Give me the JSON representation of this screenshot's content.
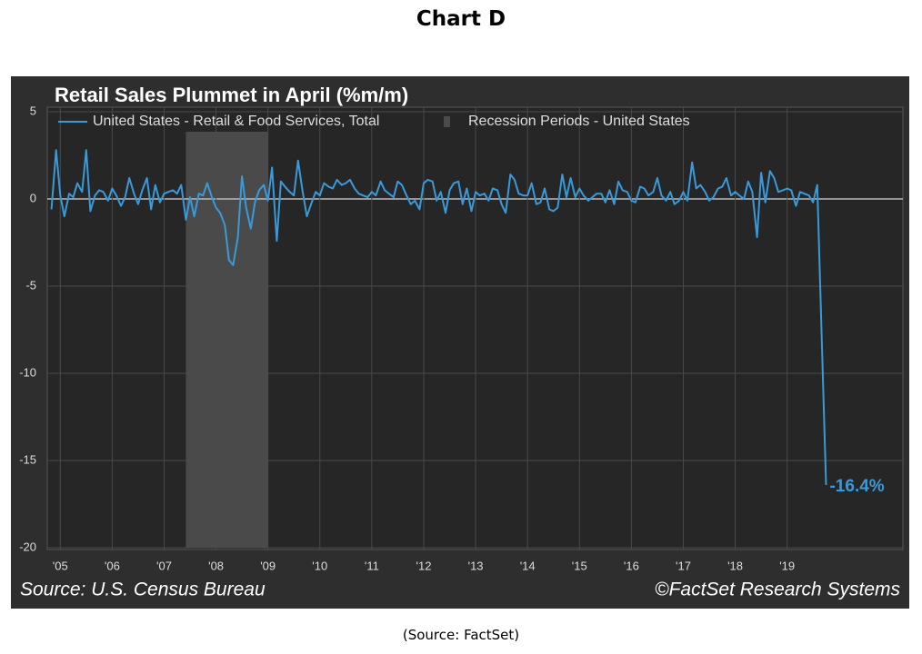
{
  "heading": "Chart D",
  "footer": "(Source:  FactSet)",
  "chart_data": {
    "type": "line",
    "title": "Retail Sales Plummet in April (%m/m)",
    "source": "Source: U.S. Census Bureau",
    "copyright": "©FactSet Research Systems",
    "annotation": "-16.4%",
    "recession": {
      "name": "Recession Periods - United States",
      "color": "#4a4a4a",
      "start": 2007.92,
      "end": 2009.5
    },
    "xlim": [
      2005.25,
      2021.73
    ],
    "xticks": [
      {
        "value": 2005.5,
        "label": "'05"
      },
      {
        "value": 2006.5,
        "label": "'06"
      },
      {
        "value": 2007.5,
        "label": "'07"
      },
      {
        "value": 2008.5,
        "label": "'08"
      },
      {
        "value": 2009.5,
        "label": "'09"
      },
      {
        "value": 2010.5,
        "label": "'10"
      },
      {
        "value": 2011.5,
        "label": "'11"
      },
      {
        "value": 2012.5,
        "label": "'12"
      },
      {
        "value": 2013.5,
        "label": "'13"
      },
      {
        "value": 2014.5,
        "label": "'14"
      },
      {
        "value": 2015.5,
        "label": "'15"
      },
      {
        "value": 2016.5,
        "label": "'16"
      },
      {
        "value": 2017.5,
        "label": "'17"
      },
      {
        "value": 2018.5,
        "label": "'18"
      },
      {
        "value": 2019.5,
        "label": "'19"
      }
    ],
    "ylim": [
      -20,
      5
    ],
    "yticks": [
      5,
      0,
      -5,
      -10,
      -15,
      -20
    ],
    "grid": true,
    "x": [
      2005.33,
      2005.42,
      2005.5,
      2005.58,
      2005.67,
      2005.75,
      2005.83,
      2005.92,
      2006,
      2006.08,
      2006.17,
      2006.25,
      2006.33,
      2006.42,
      2006.5,
      2006.58,
      2006.67,
      2006.75,
      2006.83,
      2006.92,
      2007,
      2007.08,
      2007.17,
      2007.25,
      2007.33,
      2007.42,
      2007.5,
      2007.58,
      2007.67,
      2007.75,
      2007.83,
      2007.92,
      2008,
      2008.08,
      2008.17,
      2008.25,
      2008.33,
      2008.42,
      2008.5,
      2008.58,
      2008.67,
      2008.75,
      2008.83,
      2008.92,
      2009,
      2009.08,
      2009.17,
      2009.25,
      2009.33,
      2009.42,
      2009.5,
      2009.58,
      2009.67,
      2009.75,
      2009.83,
      2009.92,
      2010,
      2010.08,
      2010.17,
      2010.25,
      2010.33,
      2010.42,
      2010.5,
      2010.58,
      2010.67,
      2010.75,
      2010.83,
      2010.92,
      2011,
      2011.08,
      2011.17,
      2011.25,
      2011.33,
      2011.42,
      2011.5,
      2011.58,
      2011.67,
      2011.75,
      2011.83,
      2011.92,
      2012,
      2012.08,
      2012.17,
      2012.25,
      2012.33,
      2012.42,
      2012.5,
      2012.58,
      2012.67,
      2012.75,
      2012.83,
      2012.92,
      2013,
      2013.08,
      2013.17,
      2013.25,
      2013.33,
      2013.42,
      2013.5,
      2013.58,
      2013.67,
      2013.75,
      2013.83,
      2013.92,
      2014,
      2014.08,
      2014.17,
      2014.25,
      2014.33,
      2014.42,
      2014.5,
      2014.58,
      2014.67,
      2014.75,
      2014.83,
      2014.92,
      2015,
      2015.08,
      2015.17,
      2015.25,
      2015.33,
      2015.42,
      2015.5,
      2015.58,
      2015.67,
      2015.75,
      2015.83,
      2015.92,
      2016,
      2016.08,
      2016.17,
      2016.25,
      2016.33,
      2016.42,
      2016.5,
      2016.58,
      2016.67,
      2016.75,
      2016.83,
      2016.92,
      2017,
      2017.08,
      2017.17,
      2017.25,
      2017.33,
      2017.42,
      2017.5,
      2017.58,
      2017.67,
      2017.75,
      2017.83,
      2017.92,
      2018,
      2018.08,
      2018.17,
      2018.25,
      2018.33,
      2018.42,
      2018.5,
      2018.58,
      2018.67,
      2018.75,
      2018.83,
      2018.92,
      2019,
      2019.08,
      2019.17,
      2019.25,
      2019.33,
      2019.42,
      2019.5,
      2019.58,
      2019.67,
      2019.75,
      2019.83,
      2019.92,
      2020,
      2020.08,
      2020.17,
      2020.25
    ],
    "series": [
      {
        "name": "United States - Retail & Food Services, Total",
        "color": "#3a9ad9",
        "values": [
          -0.6,
          2.8,
          0.2,
          -1.0,
          0.3,
          0.1,
          0.9,
          0.4,
          2.8,
          -0.7,
          0.2,
          0.5,
          0.4,
          -0.1,
          0.6,
          0.2,
          -0.4,
          0.1,
          1.2,
          0.3,
          -0.3,
          0.5,
          1.2,
          -0.6,
          0.8,
          -0.2,
          0.3,
          0.4,
          0.5,
          0.3,
          0.8,
          -1.2,
          0.1,
          -1.0,
          0.3,
          0.2,
          0.9,
          0.1,
          -0.5,
          -0.8,
          -1.5,
          -3.5,
          -3.8,
          -2.2,
          1.3,
          -0.5,
          -1.7,
          -0.2,
          0.5,
          0.8,
          -0.1,
          1.8,
          -2.4,
          1.0,
          0.7,
          0.4,
          0.2,
          2.2,
          0.4,
          -1.0,
          -0.3,
          0.4,
          0.2,
          0.9,
          0.7,
          0.6,
          1.1,
          0.8,
          0.9,
          1.1,
          0.6,
          0.3,
          0.2,
          0.1,
          0.4,
          0.2,
          1.0,
          0.5,
          0.3,
          0.1,
          1.0,
          0.8,
          0.2,
          -0.3,
          -0.1,
          -0.6,
          0.9,
          1.1,
          1.0,
          -0.1,
          0.4,
          -0.8,
          0.5,
          0.9,
          1.0,
          -0.3,
          0.6,
          -0.7,
          0.4,
          0.2,
          0.3,
          -0.1,
          0.6,
          0.5,
          -0.3,
          -0.8,
          1.4,
          1.1,
          0.3,
          0.2,
          0.2,
          0.9,
          -0.3,
          -0.2,
          0.6,
          -0.6,
          -0.7,
          -0.5,
          1.4,
          0.1,
          1.2,
          0.1,
          0.6,
          0.2,
          -0.1,
          0.1,
          0.3,
          0.3,
          -0.2,
          0.5,
          -0.3,
          1.0,
          0.5,
          0.4,
          -0.1,
          -0.2,
          0.7,
          0.6,
          0.2,
          0.4,
          1.2,
          0.2,
          -0.1,
          0.4,
          -0.3,
          -0.1,
          0.4,
          -0.1,
          2.1,
          0.6,
          0.8,
          0.4,
          -0.1,
          0.1,
          0.6,
          0.7,
          1.2,
          0.2,
          0.4,
          0.2,
          0.0,
          1.0,
          0.4,
          -2.2,
          1.5,
          -0.2,
          1.6,
          1.2,
          0.4,
          0.5,
          0.6,
          0.5,
          -0.4,
          0.4,
          0.3,
          0.2,
          -0.2,
          0.8,
          -8.3,
          -16.4
        ]
      }
    ]
  }
}
